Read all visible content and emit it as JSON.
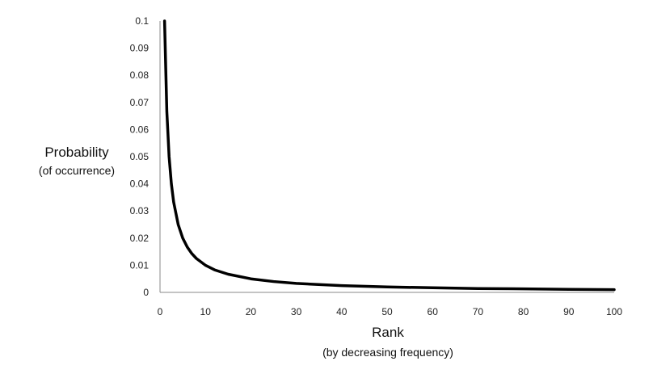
{
  "chart_data": {
    "type": "line",
    "title": "",
    "ylabel": "Probability",
    "ylabel_sub": "(of occurrence)",
    "xlabel": "Rank",
    "xlabel_sub": "(by decreasing frequency)",
    "xlim": [
      0,
      100
    ],
    "ylim": [
      0,
      0.1
    ],
    "xticks": [
      "0",
      "10",
      "20",
      "30",
      "40",
      "50",
      "60",
      "70",
      "80",
      "90",
      "100"
    ],
    "yticks": [
      "0",
      "0.01",
      "0.02",
      "0.03",
      "0.04",
      "0.05",
      "0.06",
      "0.07",
      "0.08",
      "0.09",
      "0.1"
    ],
    "grid": false,
    "legend": "none",
    "line_color": "#000000",
    "series": [
      {
        "x": [
          1,
          1.5,
          2,
          2.5,
          3,
          4,
          5,
          6,
          7,
          8,
          10,
          12,
          15,
          20,
          25,
          30,
          40,
          50,
          60,
          70,
          80,
          90,
          100
        ],
        "values": [
          0.1,
          0.0667,
          0.05,
          0.04,
          0.0333,
          0.025,
          0.02,
          0.0167,
          0.0143,
          0.0125,
          0.01,
          0.0083,
          0.0067,
          0.005,
          0.004,
          0.0033,
          0.0025,
          0.002,
          0.0017,
          0.0014,
          0.0013,
          0.0011,
          0.001
        ]
      }
    ]
  }
}
